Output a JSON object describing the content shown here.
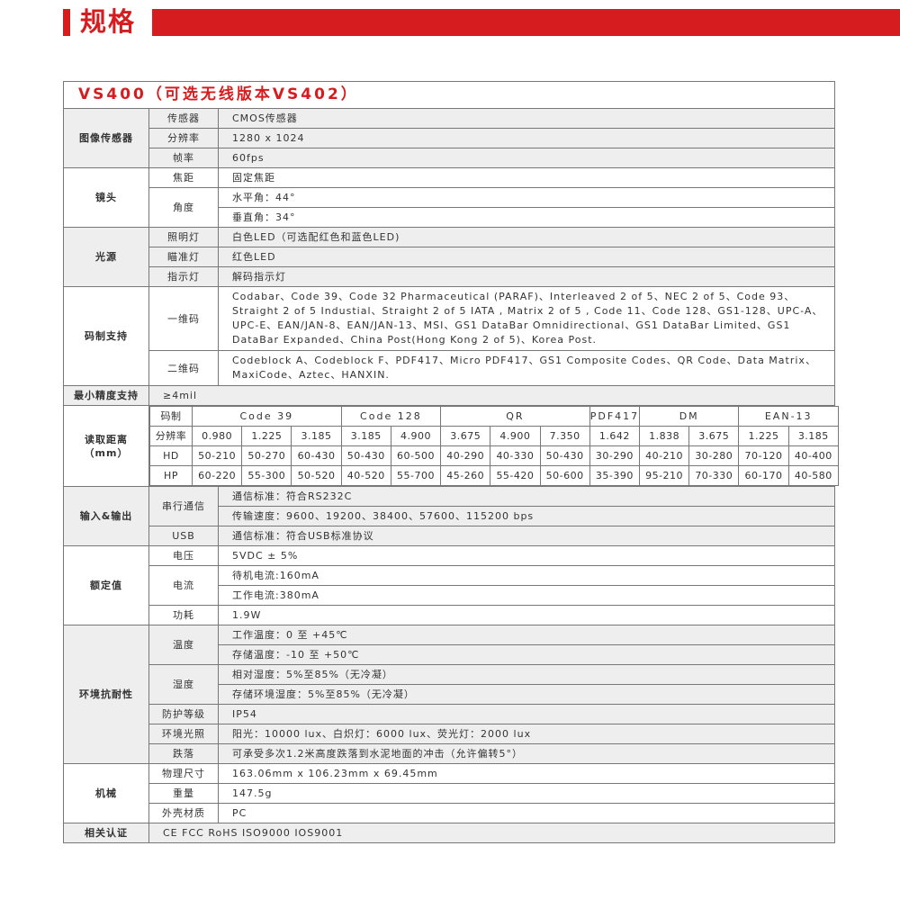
{
  "header": {
    "title": "规格"
  },
  "table_title": "VS400（可选无线版本VS402）",
  "sections": [
    {
      "label": "图像传感器",
      "rows": [
        {
          "label": "传感器",
          "values": [
            "CMOS传感器"
          ]
        },
        {
          "label": "分辨率",
          "values": [
            "1280 x 1024"
          ]
        },
        {
          "label": "帧率",
          "values": [
            "60fps"
          ]
        }
      ]
    },
    {
      "label": "镜头",
      "rows": [
        {
          "label": "焦距",
          "values": [
            "固定焦距"
          ]
        },
        {
          "label": "角度",
          "values": [
            "水平角：44°",
            "垂直角：34°"
          ]
        }
      ]
    },
    {
      "label": "光源",
      "rows": [
        {
          "label": "照明灯",
          "values": [
            "白色LED（可选配红色和蓝色LED)"
          ]
        },
        {
          "label": "瞄准灯",
          "values": [
            "红色LED"
          ]
        },
        {
          "label": "指示灯",
          "values": [
            "解码指示灯"
          ]
        }
      ]
    },
    {
      "label": "码制支持",
      "rows": [
        {
          "label": "一维码",
          "values": [
            "Codabar、Code 39、Code 32 Pharmaceutical (PARAF)、Interleaved 2 of 5、NEC 2 of 5、Code 93、Straight 2 of 5 Industial、Straight 2 of 5 IATA , Matrix 2 of 5 , Code 11、Code 128、GS1-128、UPC-A、UPC-E、EAN/JAN-8、EAN/JAN-13、MSI、GS1 DataBar Omnidirectional、GS1 DataBar Limited、GS1 DataBar Expanded、China Post(Hong Kong 2 of 5)、Korea Post."
          ],
          "multi": true
        },
        {
          "label": "二维码",
          "values": [
            "Codeblock A、Codeblock F、PDF417、Micro PDF417、GS1 Composite Codes、QR Code、Data Matrix、MaxiCode、Aztec、HANXIN."
          ],
          "multi": true
        }
      ]
    },
    {
      "label": "最小精度支持",
      "single": "≥4mil"
    },
    {
      "label": "读取距离\n（mm）",
      "reading": {
        "code_label": "码制",
        "codes": [
          {
            "name": "Code 39",
            "span": 3
          },
          {
            "name": "Code 128",
            "span": 2
          },
          {
            "name": "QR",
            "span": 3
          },
          {
            "name": "PDF417",
            "span": 1
          },
          {
            "name": "DM",
            "span": 2
          },
          {
            "name": "EAN-13",
            "span": 2
          }
        ],
        "res_label": "分辨率",
        "resolutions": [
          "0.980",
          "1.225",
          "3.185",
          "3.185",
          "4.900",
          "3.675",
          "4.900",
          "7.350",
          "1.642",
          "1.838",
          "3.675",
          "1.225",
          "3.185"
        ],
        "rows": [
          {
            "label": "HD",
            "values": [
              "50-210",
              "50-270",
              "60-430",
              "50-430",
              "60-500",
              "40-290",
              "40-330",
              "50-430",
              "30-290",
              "40-210",
              "30-280",
              "70-120",
              "40-400"
            ]
          },
          {
            "label": "HP",
            "values": [
              "60-220",
              "55-300",
              "50-520",
              "40-520",
              "55-700",
              "45-260",
              "55-420",
              "50-600",
              "35-390",
              "95-210",
              "70-330",
              "60-170",
              "40-580"
            ]
          }
        ]
      }
    },
    {
      "label": "输入&输出",
      "rows": [
        {
          "label": "串行通信",
          "values": [
            "通信标准：符合RS232C",
            "传输速度：9600、19200、38400、57600、115200 bps"
          ]
        },
        {
          "label": "USB",
          "values": [
            "通信标准：符合USB标准协议"
          ]
        }
      ]
    },
    {
      "label": "额定值",
      "rows": [
        {
          "label": "电压",
          "values": [
            "5VDC ± 5%"
          ]
        },
        {
          "label": "电流",
          "values": [
            "待机电流:160mA",
            "工作电流:380mA"
          ]
        },
        {
          "label": "功耗",
          "values": [
            "1.9W"
          ]
        }
      ]
    },
    {
      "label": "环境抗耐性",
      "rows": [
        {
          "label": "温度",
          "values": [
            "工作温度：0 至 +45℃",
            "存储温度：-10 至 +50℃"
          ]
        },
        {
          "label": "湿度",
          "values": [
            "相对湿度：5%至85%（无冷凝）",
            "存储环境湿度：5%至85%（无冷凝）"
          ]
        },
        {
          "label": "防护等级",
          "values": [
            "IP54"
          ]
        },
        {
          "label": "环境光照",
          "values": [
            "阳光：10000 lux、白炽灯：6000 lux、荧光灯：2000 lux"
          ]
        },
        {
          "label": "跌落",
          "values": [
            "可承受多次1.2米高度跌落到水泥地面的冲击（允许偏转5°）"
          ]
        }
      ]
    },
    {
      "label": "机械",
      "rows": [
        {
          "label": "物理尺寸",
          "values": [
            "163.06mm x 106.23mm x 69.45mm"
          ]
        },
        {
          "label": "重量",
          "values": [
            "147.5g"
          ]
        },
        {
          "label": "外壳材质",
          "values": [
            "PC"
          ]
        }
      ]
    },
    {
      "label": "相关认证",
      "single": "CE   FCC   RoHS   ISO9000    IOS9001"
    }
  ],
  "colors": {
    "accent": "#d71c1f",
    "alt_row": "#eeeeee"
  }
}
